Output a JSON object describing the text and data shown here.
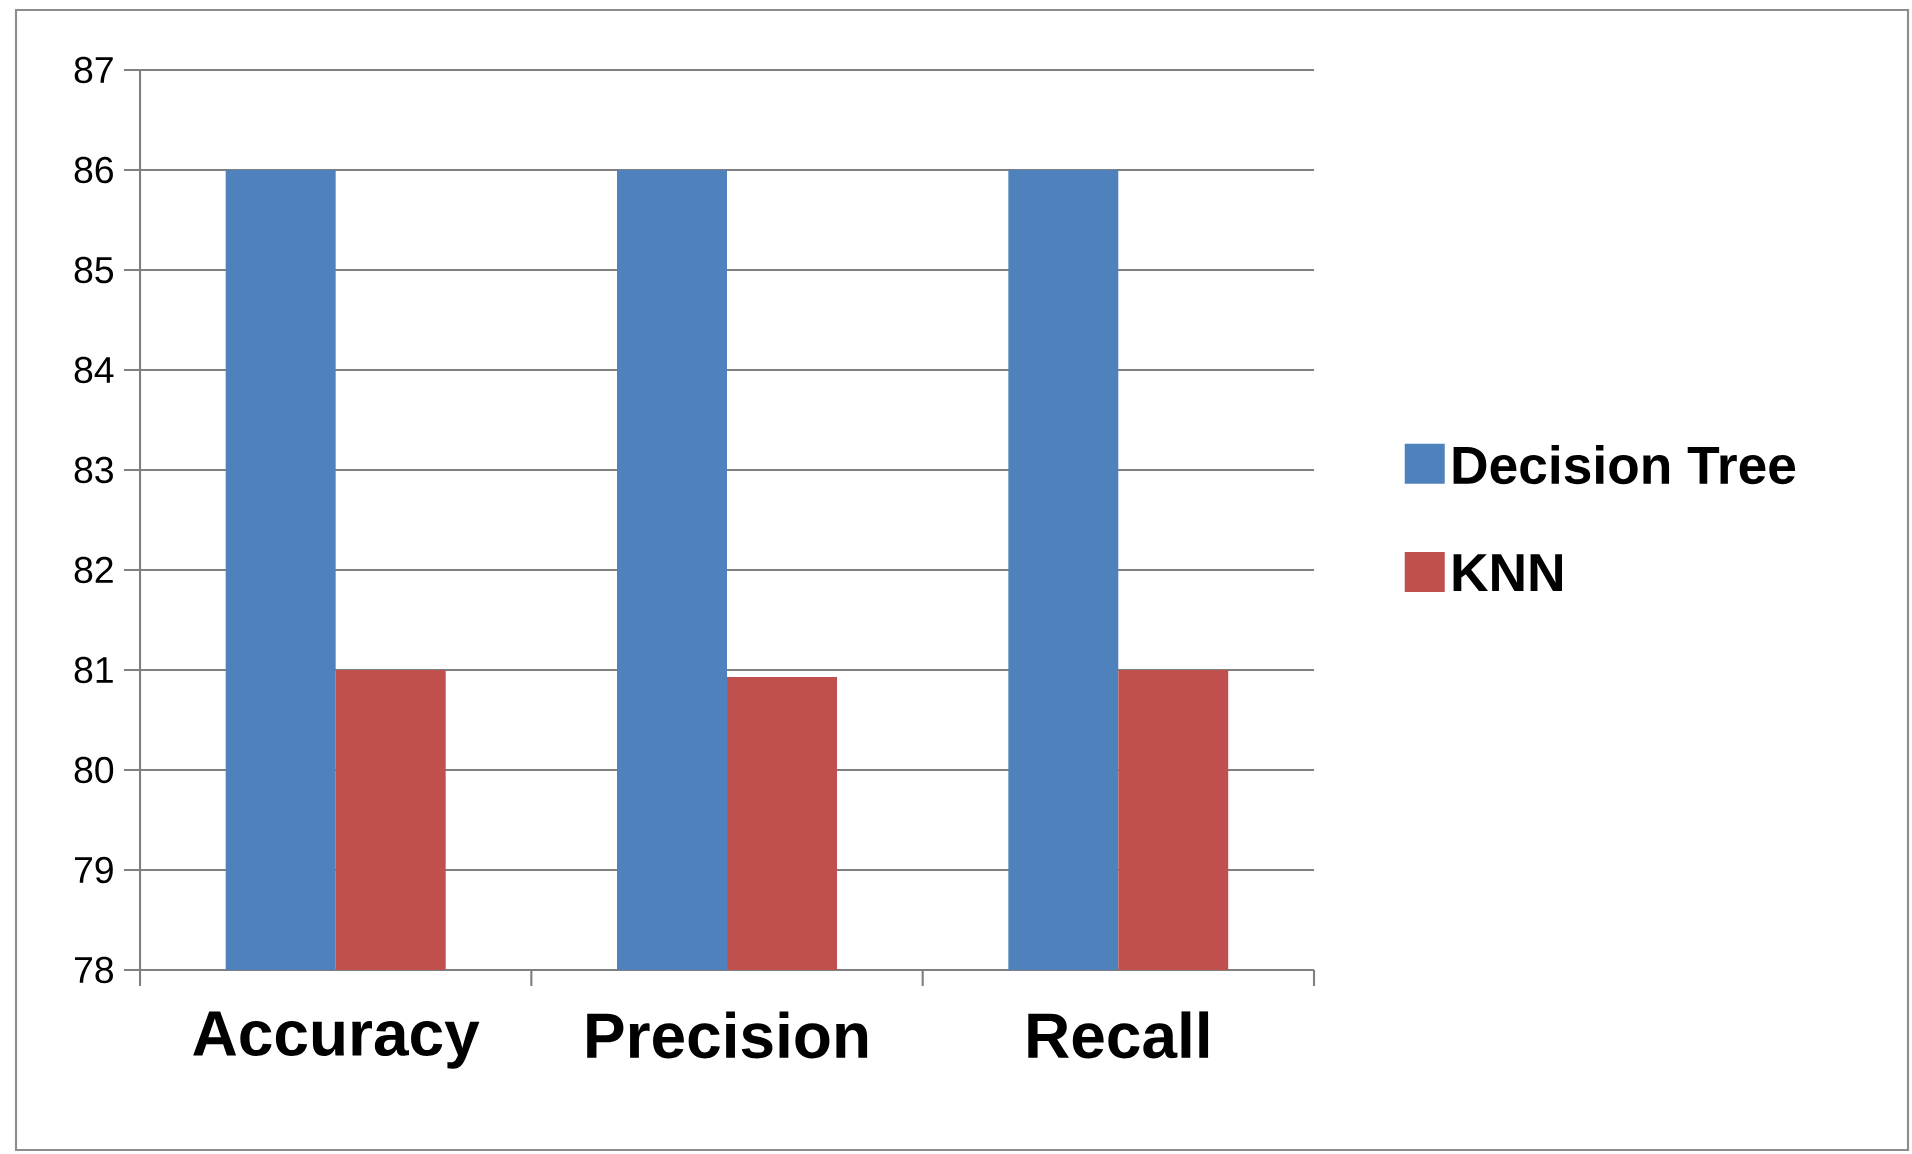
{
  "chart_data": {
    "type": "bar",
    "categories": [
      "Accuracy",
      "Precision",
      "Recall"
    ],
    "series": [
      {
        "name": "Decision Tree",
        "color": "#4f81bd",
        "values": [
          86,
          86,
          86
        ]
      },
      {
        "name": "KNN",
        "color": "#c0504d",
        "values": [
          81,
          80.93,
          81
        ]
      }
    ],
    "ylim": [
      78,
      87
    ],
    "yticks": [
      78,
      79,
      80,
      81,
      82,
      83,
      84,
      85,
      86,
      87
    ],
    "grid": "y",
    "legend": "right"
  }
}
